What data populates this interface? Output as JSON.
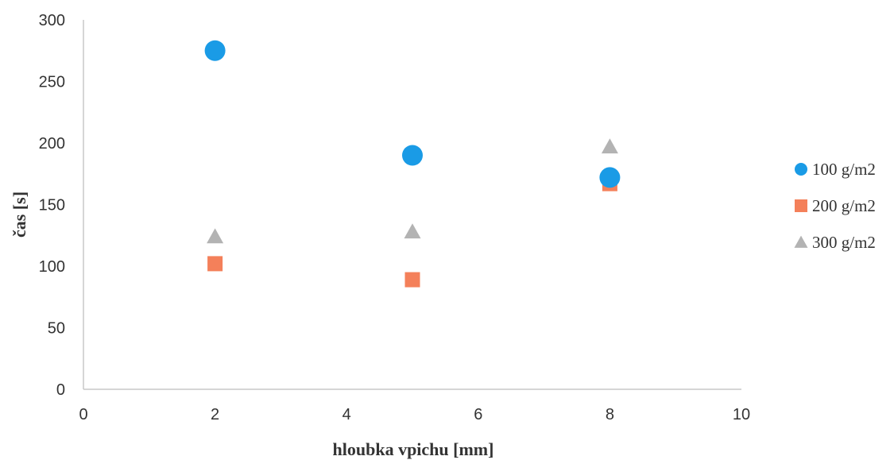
{
  "chart_data": {
    "type": "scatter",
    "title": "",
    "xlabel": "hloubka vpichu [mm]",
    "ylabel": "čas [s]",
    "xlim": [
      0,
      10
    ],
    "ylim": [
      0,
      300
    ],
    "xticks": [
      0,
      2,
      4,
      6,
      8,
      10
    ],
    "yticks": [
      0,
      50,
      100,
      150,
      200,
      250,
      300
    ],
    "grid": false,
    "legend_position": "right",
    "series": [
      {
        "name": "100 g/m2",
        "marker": "circle",
        "color": "#1a9be6",
        "points": [
          {
            "x": 2,
            "y": 275
          },
          {
            "x": 5,
            "y": 190
          },
          {
            "x": 8,
            "y": 172
          }
        ]
      },
      {
        "name": "200 g/m2",
        "marker": "square",
        "color": "#f4805a",
        "points": [
          {
            "x": 2,
            "y": 102
          },
          {
            "x": 5,
            "y": 89
          },
          {
            "x": 8,
            "y": 167
          }
        ]
      },
      {
        "name": "300 g/m2",
        "marker": "triangle",
        "color": "#b3b3b3",
        "points": [
          {
            "x": 2,
            "y": 124
          },
          {
            "x": 5,
            "y": 128
          },
          {
            "x": 8,
            "y": 197
          }
        ]
      }
    ]
  }
}
